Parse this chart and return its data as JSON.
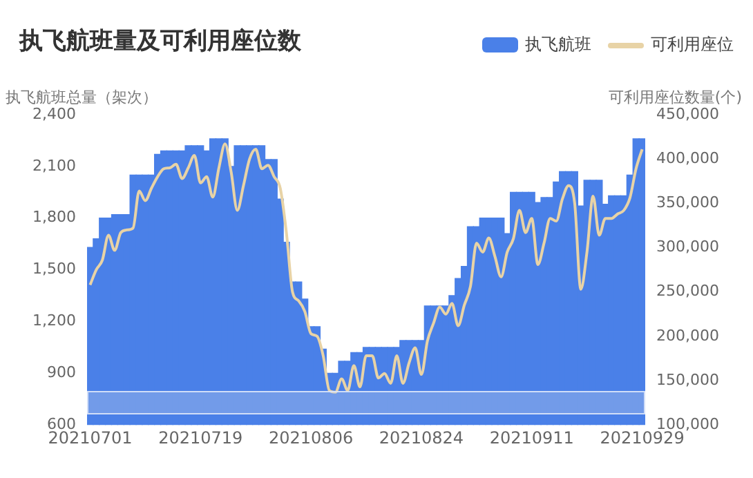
{
  "chart_data": {
    "type": "bar",
    "title": "执飞航班量及可利用座位数",
    "ylabel": "执飞航班总量（架次）",
    "y2label": "可利用座位数量(个)",
    "categories": [
      "20210701",
      null,
      null,
      null,
      null,
      null,
      null,
      null,
      null,
      null,
      null,
      null,
      null,
      null,
      null,
      null,
      null,
      null,
      "20210719",
      null,
      null,
      null,
      null,
      null,
      null,
      null,
      null,
      null,
      null,
      null,
      null,
      null,
      null,
      null,
      null,
      null,
      "20210806",
      null,
      null,
      null,
      null,
      null,
      null,
      null,
      null,
      null,
      null,
      null,
      null,
      null,
      null,
      null,
      null,
      null,
      "20210824",
      null,
      null,
      null,
      null,
      null,
      null,
      null,
      null,
      null,
      null,
      null,
      null,
      null,
      null,
      null,
      null,
      null,
      "20210911",
      null,
      null,
      null,
      null,
      null,
      null,
      null,
      null,
      null,
      null,
      null,
      null,
      null,
      null,
      null,
      null,
      null,
      "20210929"
    ],
    "series": [
      {
        "name": "执飞航班",
        "color": "#4a80e8",
        "values": [
          1630,
          1680,
          1800,
          1800,
          1820,
          1820,
          1820,
          2050,
          2050,
          2050,
          2050,
          2170,
          2190,
          2190,
          2190,
          2190,
          2220,
          2220,
          2220,
          2190,
          2260,
          2260,
          2260,
          2100,
          2220,
          2220,
          2220,
          2220,
          2220,
          2140,
          2140,
          1910,
          1660,
          1430,
          1430,
          1330,
          1170,
          1170,
          1040,
          900,
          900,
          970,
          970,
          1020,
          1020,
          1050,
          1050,
          1050,
          1050,
          1050,
          1050,
          1090,
          1090,
          1090,
          1090,
          1290,
          1290,
          1290,
          1290,
          1350,
          1450,
          1520,
          1750,
          1750,
          1800,
          1800,
          1800,
          1800,
          1710,
          1950,
          1950,
          1950,
          1950,
          1890,
          1920,
          1920,
          2010,
          2070,
          2070,
          2070,
          1870,
          2020,
          2020,
          2020,
          1880,
          1930,
          1930,
          1930,
          2050,
          2260,
          2260
        ]
      },
      {
        "name": "可利用座位",
        "type": "line",
        "axis": "y2",
        "color": "#e8d3a6",
        "values": [
          258000,
          275000,
          286000,
          314000,
          297000,
          317000,
          320000,
          322000,
          364000,
          353000,
          367000,
          380000,
          389000,
          390000,
          394000,
          378000,
          390000,
          404000,
          373000,
          380000,
          357000,
          390000,
          417000,
          385000,
          342000,
          370000,
          400000,
          411000,
          389000,
          393000,
          380000,
          367000,
          317000,
          250000,
          240000,
          228000,
          203000,
          200000,
          178000,
          139000,
          137000,
          152000,
          139000,
          167000,
          143000,
          178000,
          178000,
          153000,
          158000,
          147000,
          178000,
          147000,
          170000,
          187000,
          157000,
          195000,
          215000,
          233000,
          225000,
          237000,
          212000,
          235000,
          256000,
          305000,
          295000,
          311000,
          290000,
          267000,
          295000,
          310000,
          342000,
          317000,
          333000,
          281000,
          305000,
          333000,
          330000,
          355000,
          370000,
          350000,
          253000,
          295000,
          358000,
          314000,
          333000,
          333000,
          338000,
          342000,
          356000,
          389000,
          411000
        ]
      }
    ],
    "ylim": [
      600,
      2400
    ],
    "yticks": [
      600,
      900,
      {
        "value": 1200,
        "label": "1,200"
      },
      {
        "value": 1500,
        "label": "1,500"
      },
      {
        "value": 1800,
        "label": "1,800"
      },
      {
        "value": 2100,
        "label": "2,100"
      },
      {
        "value": 2400,
        "label": "2,400"
      }
    ],
    "y2lim": [
      100000,
      450000
    ],
    "y2ticks": [
      {
        "value": 100000,
        "label": "100,000"
      },
      {
        "value": 150000,
        "label": "150,000"
      },
      {
        "value": 200000,
        "label": "200,000"
      },
      {
        "value": 250000,
        "label": "250,000"
      },
      {
        "value": 300000,
        "label": "300,000"
      },
      {
        "value": 350000,
        "label": "350,000"
      },
      {
        "value": 400000,
        "label": "400,000"
      },
      {
        "value": 450000,
        "label": "450,000"
      }
    ],
    "grid": false,
    "legend": "top right"
  }
}
